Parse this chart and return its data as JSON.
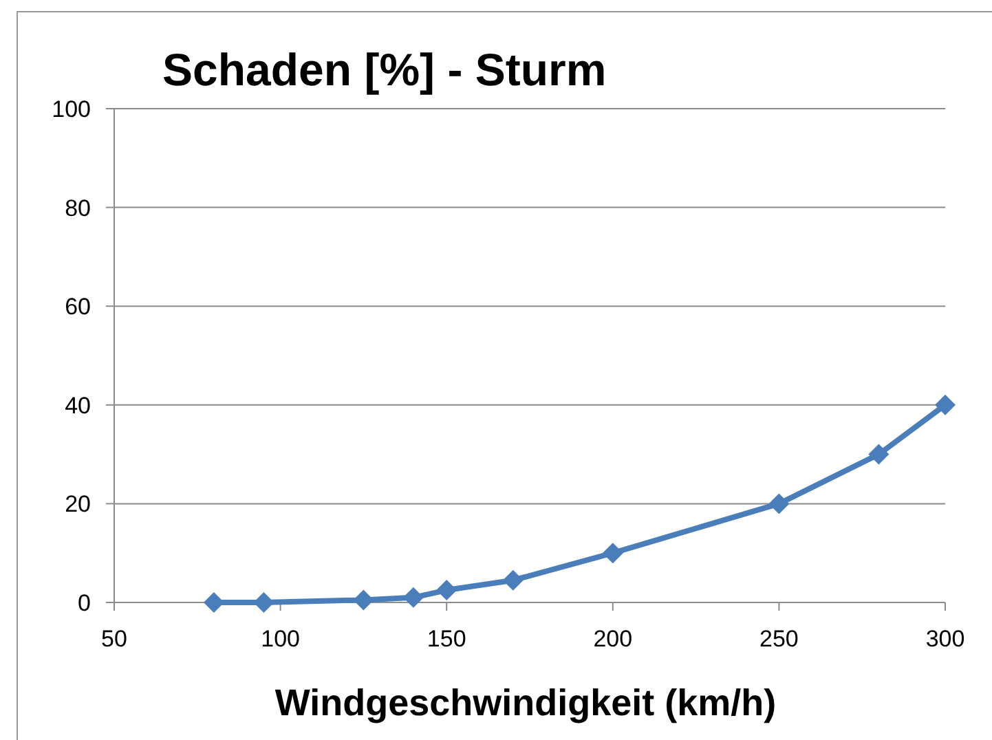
{
  "chart_data": {
    "type": "line",
    "title": "Schaden [%] - Sturm",
    "xlabel": "Windgeschwindigkeit (km/h)",
    "x": [
      80,
      95,
      125,
      140,
      150,
      170,
      200,
      250,
      280,
      300
    ],
    "series": [
      {
        "color": "#4a7ebb",
        "values": [
          0,
          0,
          0.5,
          1,
          2.5,
          4.5,
          10,
          20,
          30,
          40
        ]
      }
    ],
    "xlim": [
      50,
      300
    ],
    "xticks": [
      50,
      100,
      150,
      200,
      250,
      300
    ],
    "ylim": [
      0,
      100
    ],
    "yticks": [
      0,
      20,
      40,
      60,
      80,
      100
    ],
    "grid": "y",
    "marker": "diamond",
    "line_style": "solid"
  }
}
